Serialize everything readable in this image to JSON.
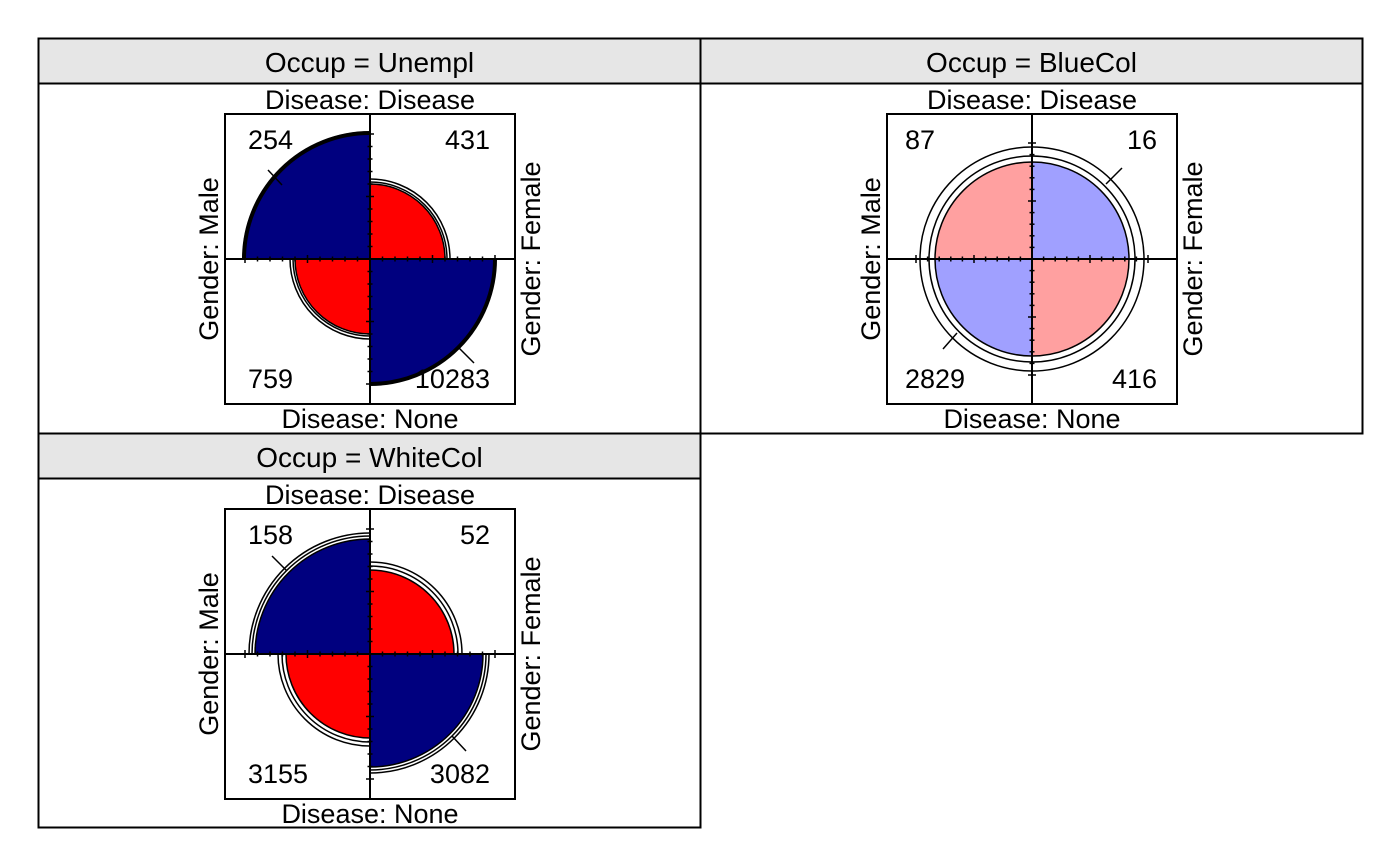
{
  "chart_data": {
    "type": "fourfold",
    "row_variable": "Gender",
    "column_variable": "Disease",
    "panel_variable": "Occup",
    "colors": {
      "positive_strong": "#ff0000",
      "negative_strong": "#00007f",
      "positive_light": "#ffa0a0",
      "negative_light": "#a0a0ff",
      "strip_fill": "#e6e6e6"
    },
    "panels": [
      {
        "strip": "Occup = Unempl",
        "labels": {
          "top": "Disease: Disease",
          "bottom": "Disease: None",
          "left": "Gender: Male",
          "right": "Gender: Female"
        },
        "cells": {
          "male_disease": "254",
          "female_disease": "431",
          "male_none": "759",
          "female_none": "10283"
        },
        "shading": "strong"
      },
      {
        "strip": "Occup = BlueCol",
        "labels": {
          "top": "Disease: Disease",
          "bottom": "Disease: None",
          "left": "Gender: Male",
          "right": "Gender: Female"
        },
        "cells": {
          "male_disease": "87",
          "female_disease": "16",
          "male_none": "2829",
          "female_none": "416"
        },
        "shading": "light"
      },
      {
        "strip": "Occup = WhiteCol",
        "labels": {
          "top": "Disease: Disease",
          "bottom": "Disease: None",
          "left": "Gender: Male",
          "right": "Gender: Female"
        },
        "cells": {
          "male_disease": "158",
          "female_disease": "52",
          "male_none": "3155",
          "female_none": "3082"
        },
        "shading": "strong"
      }
    ]
  }
}
